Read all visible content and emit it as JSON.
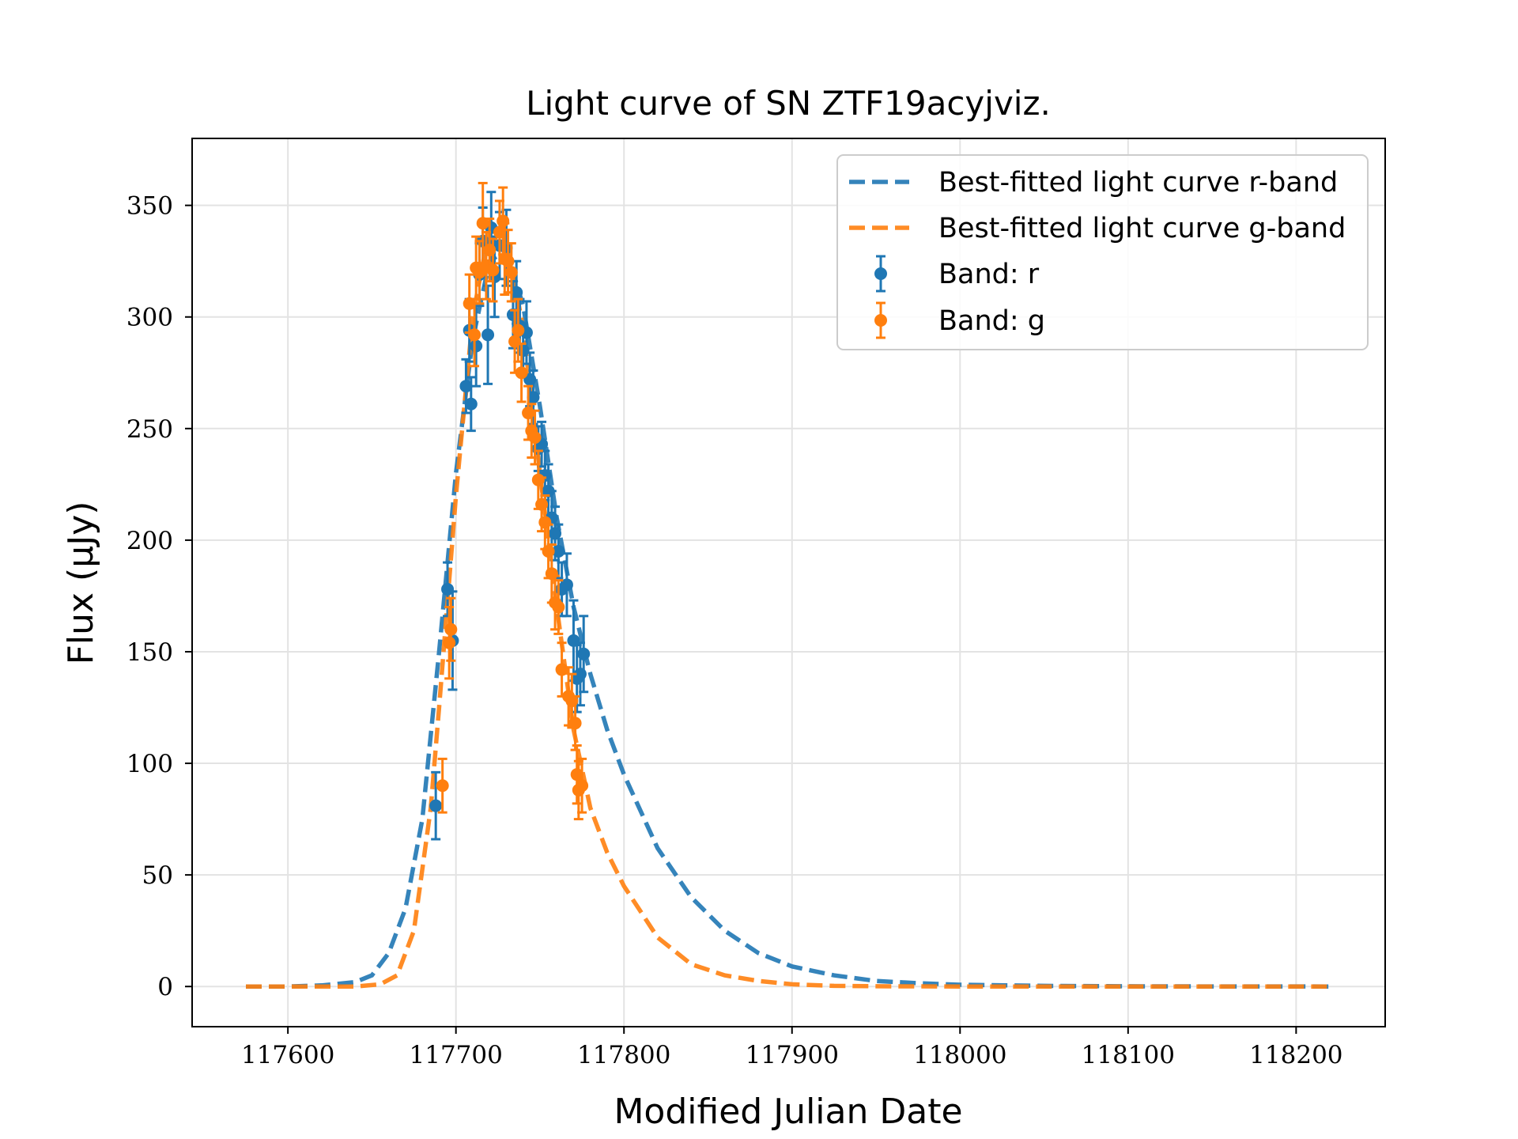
{
  "chart_data": {
    "type": "scatter",
    "title": "Light curve of SN ZTF19acyjviz.",
    "xlabel": "Modified Julian Date",
    "ylabel": "Flux (μJy)",
    "xlim": [
      117543,
      118253
    ],
    "ylim": [
      -18,
      380
    ],
    "xticks": [
      117600,
      117700,
      117800,
      117900,
      118000,
      118100,
      118200
    ],
    "yticks": [
      0,
      50,
      100,
      150,
      200,
      250,
      300,
      350
    ],
    "grid": true,
    "legend_position": "top-right",
    "series": [
      {
        "name": "Best-fitted light curve r-band",
        "kind": "line",
        "style": "dashed",
        "color": "#1f77b4",
        "x": [
          117575,
          117600,
          117620,
          117640,
          117650,
          117660,
          117670,
          117680,
          117690,
          117700,
          117710,
          117720,
          117730,
          117740,
          117750,
          117760,
          117770,
          117780,
          117790,
          117800,
          117820,
          117840,
          117860,
          117880,
          117900,
          117925,
          117950,
          117975,
          118000,
          118050,
          118100,
          118150,
          118220
        ],
        "y": [
          0,
          0,
          0.5,
          2,
          5,
          15,
          35,
          75,
          150,
          230,
          290,
          325,
          330,
          305,
          260,
          210,
          170,
          140,
          115,
          95,
          62,
          40,
          25,
          15,
          9,
          5,
          2.5,
          1.5,
          0.8,
          0.3,
          0.1,
          0.05,
          0
        ]
      },
      {
        "name": "Best-fitted light curve g-band",
        "kind": "line",
        "style": "dashed",
        "color": "#ff7f0e",
        "x": [
          117575,
          117600,
          117640,
          117655,
          117665,
          117675,
          117685,
          117690,
          117700,
          117710,
          117720,
          117730,
          117740,
          117750,
          117760,
          117770,
          117780,
          117790,
          117800,
          117820,
          117840,
          117860,
          117880,
          117900,
          117925,
          117950,
          118000,
          118050,
          118220
        ],
        "y": [
          0,
          0,
          0,
          1,
          5,
          25,
          80,
          125,
          220,
          300,
          340,
          335,
          295,
          230,
          170,
          115,
          80,
          60,
          45,
          22,
          10,
          5,
          2.5,
          1,
          0.3,
          0.1,
          0,
          0,
          0
        ]
      },
      {
        "name": "Band: r",
        "kind": "errorbar",
        "color": "#1f77b4",
        "x": [
          117688,
          117695,
          117698,
          117706,
          117708,
          117709,
          117712,
          117714,
          117716,
          117719,
          117721,
          117723,
          117726,
          117730,
          117734,
          117736,
          117738,
          117740,
          117742,
          117744,
          117746,
          117749,
          117751,
          117753,
          117755,
          117757,
          117759,
          117761,
          117763,
          117766,
          117770,
          117772,
          117774,
          117776
        ],
        "y": [
          81,
          178,
          155,
          269,
          294,
          261,
          287,
          319,
          334,
          292,
          340,
          318,
          332,
          331,
          301,
          311,
          296,
          285,
          293,
          272,
          264,
          241,
          243,
          229,
          222,
          210,
          203,
          195,
          178,
          180,
          155,
          138,
          140,
          149
        ],
        "err": [
          15,
          12,
          22,
          12,
          14,
          12,
          18,
          14,
          15,
          22,
          16,
          18,
          15,
          17,
          15,
          14,
          12,
          12,
          14,
          12,
          12,
          10,
          10,
          11,
          12,
          12,
          12,
          12,
          12,
          14,
          18,
          15,
          14,
          17
        ]
      },
      {
        "name": "Band: g",
        "kind": "errorbar",
        "color": "#ff7f0e",
        "x": [
          117692,
          117696,
          117697,
          117708,
          117711,
          117712,
          117714,
          117716,
          117718,
          117720,
          117722,
          117726,
          117728,
          117729,
          117731,
          117733,
          117735,
          117737,
          117739,
          117743,
          117745,
          117747,
          117749,
          117751,
          117753,
          117755,
          117757,
          117759,
          117761,
          117763,
          117767,
          117769,
          117771,
          117772,
          117773,
          117775
        ],
        "y": [
          90,
          154,
          160,
          306,
          292,
          322,
          320,
          342,
          323,
          330,
          321,
          338,
          343,
          326,
          325,
          320,
          289,
          294,
          275,
          257,
          249,
          246,
          227,
          216,
          208,
          195,
          185,
          172,
          170,
          142,
          130,
          128,
          118,
          95,
          88,
          90
        ],
        "err": [
          12,
          16,
          14,
          13,
          14,
          14,
          14,
          18,
          15,
          14,
          14,
          14,
          15,
          16,
          14,
          13,
          14,
          14,
          13,
          12,
          12,
          12,
          13,
          12,
          12,
          12,
          13,
          12,
          12,
          12,
          13,
          12,
          12,
          13,
          13,
          12
        ]
      }
    ]
  }
}
